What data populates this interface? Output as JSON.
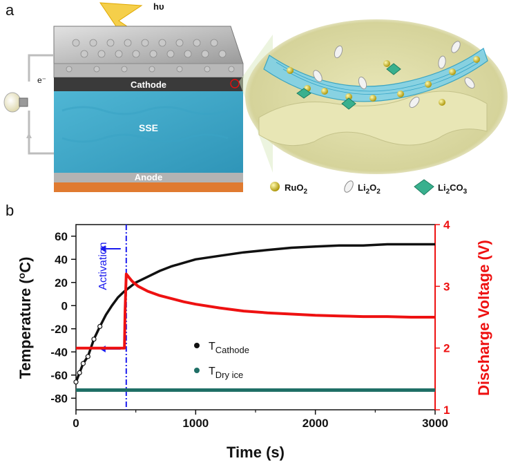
{
  "panel_a": {
    "letter": "a",
    "light_label": "hυ",
    "electron_label": "e⁻",
    "layers": {
      "cathode": "Cathode",
      "sse": "SSE",
      "anode": "Anode"
    },
    "legend": [
      {
        "name": "RuO",
        "sub": "2",
        "tail": "",
        "icon": "yellow-sphere-icon",
        "color": "#c8b400"
      },
      {
        "name": "Li",
        "sub": "2",
        "tail": "O",
        "sub2": "2",
        "icon": "white-ellipsoid-icon",
        "color": "#e6e6e6"
      },
      {
        "name": "Li",
        "sub": "2",
        "tail": "CO",
        "sub2": "3",
        "icon": "green-crystal-icon",
        "color": "#39b08e"
      }
    ]
  },
  "panel_b": {
    "letter": "b"
  },
  "chart_data": {
    "type": "line",
    "xlabel": "Time (s)",
    "ylabel_left": "Temperature (°C)",
    "ylabel_left_sup": "o",
    "ylabel_right": "Discharge Voltage (V)",
    "xlim": [
      0,
      3000
    ],
    "ylim_left": [
      -90,
      70
    ],
    "ylim_right": [
      1,
      4
    ],
    "x_ticks": [
      0,
      1000,
      2000,
      3000
    ],
    "x_ticks_minor": [
      500,
      1500,
      2500
    ],
    "y_left_ticks": [
      -80,
      -60,
      -40,
      -20,
      0,
      20,
      40,
      60
    ],
    "y_right_ticks": [
      1,
      2,
      3,
      4
    ],
    "annotation": {
      "text": "Activation",
      "x": 420
    },
    "legend": [
      {
        "name": "T",
        "sub": "Cathode",
        "color": "#111111"
      },
      {
        "name": "T",
        "sub": "Dry ice",
        "color": "#1f6f66"
      }
    ],
    "series": [
      {
        "name": "T Cathode",
        "axis": "left",
        "color": "#111111",
        "x": [
          0,
          30,
          60,
          100,
          150,
          200,
          250,
          300,
          350,
          400,
          450,
          500,
          600,
          700,
          800,
          900,
          1000,
          1200,
          1400,
          1600,
          1800,
          2000,
          2200,
          2400,
          2600,
          2800,
          3000
        ],
        "y": [
          -66,
          -58,
          -50,
          -44,
          -29,
          -18,
          -8,
          0,
          7,
          12,
          16,
          20,
          25,
          30,
          34,
          37,
          40,
          43,
          46,
          48,
          50,
          51,
          52,
          52,
          53,
          53,
          53
        ]
      },
      {
        "name": "T Dry ice",
        "axis": "left",
        "color": "#1f6f66",
        "x": [
          0,
          500,
          1000,
          1500,
          2000,
          2500,
          3000
        ],
        "y": [
          -73,
          -73,
          -73,
          -73,
          -73,
          -73,
          -73
        ]
      },
      {
        "name": "Discharge Voltage",
        "axis": "right",
        "color": "#ee1111",
        "x": [
          0,
          405,
          410,
          420,
          440,
          470,
          520,
          600,
          700,
          800,
          900,
          1000,
          1200,
          1400,
          1600,
          1800,
          2000,
          2200,
          2400,
          2600,
          2800,
          3000
        ],
        "y": [
          2.0,
          2.0,
          2.6,
          3.2,
          3.15,
          3.08,
          3.0,
          2.92,
          2.85,
          2.8,
          2.75,
          2.71,
          2.65,
          2.6,
          2.57,
          2.55,
          2.53,
          2.52,
          2.51,
          2.51,
          2.5,
          2.5
        ]
      }
    ]
  }
}
